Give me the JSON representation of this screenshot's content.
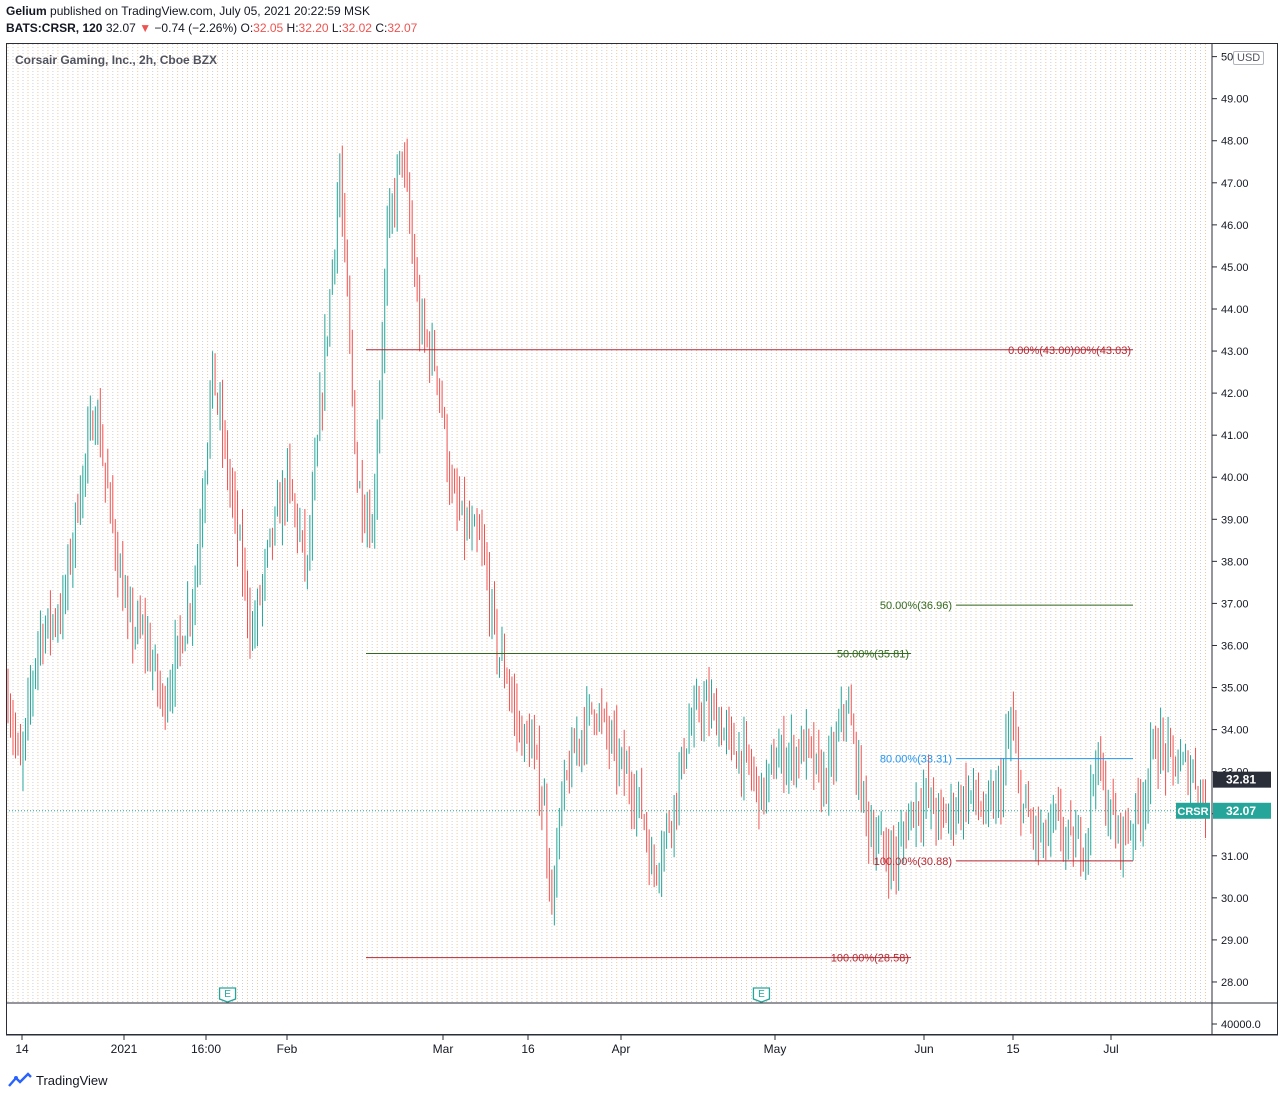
{
  "header": {
    "publisher": "Gelium",
    "published_text": "published on TradingView.com, July 05, 2021 20:22:59 MSK",
    "symbol": "BATS:CRSR, 120",
    "last": "32.07",
    "change": "−0.74 (−2.26%)",
    "ohlc": [
      {
        "label": "O:",
        "value": "32.05"
      },
      {
        "label": "H:",
        "value": "32.20"
      },
      {
        "label": "L:",
        "value": "32.02"
      },
      {
        "label": "C:",
        "value": "32.07"
      }
    ]
  },
  "footer": {
    "brand": "TradingView"
  },
  "chart_data": {
    "type": "candlestick",
    "title": "Corsair Gaming, Inc., 2h, Cboe BZX",
    "currency": "USD",
    "ylim": [
      27.5,
      50.3
    ],
    "y_ticks": [
      "50.00",
      "49.00",
      "48.00",
      "47.00",
      "46.00",
      "45.00",
      "44.00",
      "43.00",
      "42.00",
      "41.00",
      "40.00",
      "39.00",
      "38.00",
      "37.00",
      "36.00",
      "35.00",
      "34.00",
      "33.00",
      "32.00",
      "31.00",
      "30.00",
      "29.00",
      "28.00"
    ],
    "volume_tick": "40000.0",
    "x_ticks": [
      "14",
      "2021",
      "16:00",
      "Feb",
      "Mar",
      "16",
      "Apr",
      "May",
      "Jun",
      "15",
      "Jul"
    ],
    "colors": {
      "up": "#26a69a",
      "down": "#ef5350",
      "red_line": "#b22833",
      "green_line": "#33691e",
      "blue_line": "#2196f3"
    },
    "price_path": [
      [
        0,
        34.8
      ],
      [
        5,
        33.0
      ],
      [
        12,
        36.2
      ],
      [
        22,
        36.9
      ],
      [
        28,
        39.4
      ],
      [
        35,
        41.7
      ],
      [
        42,
        38.8
      ],
      [
        48,
        36.5
      ],
      [
        55,
        36.2
      ],
      [
        62,
        34.6
      ],
      [
        68,
        35.8
      ],
      [
        75,
        37.5
      ],
      [
        82,
        42.5
      ],
      [
        90,
        39.4
      ],
      [
        98,
        36.2
      ],
      [
        105,
        38.4
      ],
      [
        112,
        39.9
      ],
      [
        120,
        37.8
      ],
      [
        128,
        43.6
      ],
      [
        133,
        47.2
      ],
      [
        140,
        39.9
      ],
      [
        146,
        38.7
      ],
      [
        152,
        45.6
      ],
      [
        158,
        47.8
      ],
      [
        165,
        43.6
      ],
      [
        172,
        42.6
      ],
      [
        178,
        39.5
      ],
      [
        184,
        38.7
      ],
      [
        190,
        38.3
      ],
      [
        196,
        35.9
      ],
      [
        200,
        35.3
      ],
      [
        203,
        34.4
      ],
      [
        206,
        33.8
      ],
      [
        210,
        33.6
      ],
      [
        215,
        32.1
      ],
      [
        218,
        29.8
      ],
      [
        222,
        32.3
      ],
      [
        228,
        33.7
      ],
      [
        235,
        34.6
      ],
      [
        240,
        33.9
      ],
      [
        245,
        33.2
      ],
      [
        250,
        32.7
      ],
      [
        255,
        31.9
      ],
      [
        258,
        30.6
      ],
      [
        262,
        31.2
      ],
      [
        268,
        32.5
      ],
      [
        272,
        33.8
      ],
      [
        278,
        34.6
      ],
      [
        284,
        34.3
      ],
      [
        290,
        33.6
      ],
      [
        296,
        33.2
      ],
      [
        302,
        32.4
      ],
      [
        308,
        33.3
      ],
      [
        314,
        33.4
      ],
      [
        320,
        33.6
      ],
      [
        326,
        32.7
      ],
      [
        330,
        33.1
      ],
      [
        336,
        34.7
      ],
      [
        340,
        33.2
      ],
      [
        345,
        31.7
      ],
      [
        350,
        31.2
      ],
      [
        356,
        30.9
      ],
      [
        362,
        32.1
      ],
      [
        368,
        32.4
      ],
      [
        374,
        31.8
      ],
      [
        380,
        32.2
      ],
      [
        386,
        32.5
      ],
      [
        392,
        31.9
      ],
      [
        398,
        32.6
      ],
      [
        402,
        34.2
      ],
      [
        406,
        32.3
      ],
      [
        410,
        31.7
      ],
      [
        415,
        31.3
      ],
      [
        420,
        31.8
      ],
      [
        426,
        31.2
      ],
      [
        432,
        31.4
      ],
      [
        436,
        33.4
      ],
      [
        440,
        32.3
      ],
      [
        445,
        31.5
      ],
      [
        450,
        31.7
      ],
      [
        455,
        32.4
      ],
      [
        460,
        33.7
      ],
      [
        465,
        33.3
      ],
      [
        470,
        33.1
      ],
      [
        475,
        33.0
      ],
      [
        478,
        32.6
      ],
      [
        480,
        32.1
      ]
    ],
    "last_index": 480,
    "last_price": 32.07,
    "price_labels": [
      {
        "text": "32.81",
        "price": 32.81,
        "style": "dark"
      },
      {
        "text": "32.07",
        "price": 32.07,
        "style": "teal",
        "symbol": "CRSR"
      }
    ],
    "levels": [
      {
        "label": "0.00%(43.00)00%(43.03)",
        "price": 43.03,
        "from": 0.32,
        "to": 1.0,
        "color": "red_line",
        "label_pos": "end"
      },
      {
        "label": "50.00%(36.96)",
        "price": 36.96,
        "from": 0.84,
        "to": 1.0,
        "color": "green_line",
        "label_pos": "start"
      },
      {
        "label": "50.00%(35.81)",
        "price": 35.81,
        "from": 0.32,
        "to": 0.84,
        "color": "green_line",
        "label_pos": "end"
      },
      {
        "label": "80.00%(33.31)",
        "price": 33.31,
        "from": 0.84,
        "to": 1.0,
        "color": "blue_line",
        "label_pos": "start"
      },
      {
        "label": "100.00%(30.88)",
        "price": 30.88,
        "from": 0.84,
        "to": 1.0,
        "color": "red_line",
        "label_pos": "start"
      },
      {
        "label": "100.00%(28.58)",
        "price": 28.58,
        "from": 0.32,
        "to": 0.84,
        "color": "red_line",
        "label_pos": "end"
      }
    ],
    "earnings_markers": [
      {
        "label": "E",
        "index": 88
      },
      {
        "label": "E",
        "index": 302
      }
    ]
  }
}
